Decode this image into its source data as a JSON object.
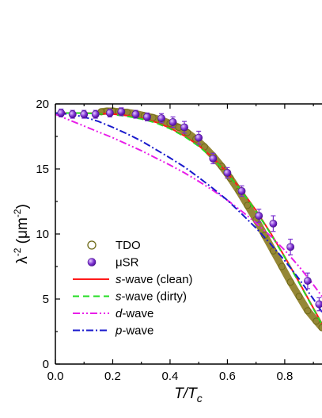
{
  "chart_data": {
    "type": "line",
    "xlabel": {
      "main": "T/T",
      "sub": "c"
    },
    "ylabel": {
      "main": "λ",
      "sup": "-2",
      "unit": " (μm",
      "unit_sup": "-2",
      "close": ")"
    },
    "xlim": [
      0.0,
      0.93
    ],
    "ylim": [
      0,
      20
    ],
    "xticks": [
      0.0,
      0.2,
      0.4,
      0.6,
      0.8
    ],
    "xtick_labels": [
      "0.0",
      "0.2",
      "0.4",
      "0.6",
      "0.8"
    ],
    "yticks": [
      0,
      5,
      10,
      15,
      20
    ],
    "ytick_labels": [
      "0",
      "5",
      "10",
      "15",
      "20"
    ],
    "grid": false,
    "legend_placement": "bottom-left",
    "series": [
      {
        "name": "TDO",
        "kind": "markers-open",
        "color": "#8a8a2a",
        "fill": "#8a7a20",
        "x": [
          0.16,
          0.18,
          0.2,
          0.22,
          0.25,
          0.28,
          0.31,
          0.34,
          0.37,
          0.4,
          0.43,
          0.46,
          0.49,
          0.52,
          0.55,
          0.58,
          0.61,
          0.64,
          0.67,
          0.7,
          0.73,
          0.76,
          0.79,
          0.82,
          0.85,
          0.88,
          0.91,
          0.93
        ],
        "y": [
          19.4,
          19.45,
          19.45,
          19.4,
          19.35,
          19.25,
          19.1,
          18.95,
          18.75,
          18.5,
          18.2,
          17.8,
          17.3,
          16.7,
          16.0,
          15.2,
          14.3,
          13.3,
          12.2,
          11.1,
          9.9,
          8.7,
          7.5,
          6.3,
          5.2,
          4.1,
          3.3,
          2.8
        ]
      },
      {
        "name": "μSR",
        "kind": "markers-filled",
        "color": "#7a2fd0",
        "x": [
          0.02,
          0.06,
          0.1,
          0.14,
          0.19,
          0.23,
          0.28,
          0.32,
          0.37,
          0.41,
          0.45,
          0.5,
          0.55,
          0.6,
          0.65,
          0.71,
          0.76,
          0.82,
          0.88,
          0.92
        ],
        "y": [
          19.3,
          19.2,
          19.2,
          19.2,
          19.3,
          19.4,
          19.2,
          19.0,
          18.9,
          18.6,
          18.2,
          17.4,
          15.8,
          14.7,
          13.3,
          11.4,
          10.8,
          9.0,
          6.4,
          4.6
        ],
        "err": [
          0.3,
          0.3,
          0.3,
          0.3,
          0.3,
          0.3,
          0.3,
          0.3,
          0.35,
          0.4,
          0.45,
          0.5,
          0.4,
          0.4,
          0.4,
          0.5,
          0.6,
          0.6,
          0.6,
          0.5
        ]
      },
      {
        "name": "s-wave (clean)",
        "name_italic": "s",
        "name_rest": "-wave (clean)",
        "kind": "line",
        "dash": "",
        "color": "#ff1a1a",
        "x": [
          0.0,
          0.05,
          0.1,
          0.15,
          0.2,
          0.25,
          0.3,
          0.35,
          0.4,
          0.45,
          0.5,
          0.55,
          0.6,
          0.65,
          0.7,
          0.75,
          0.8,
          0.85,
          0.9,
          0.93
        ],
        "y": [
          19.3,
          19.3,
          19.3,
          19.28,
          19.22,
          19.1,
          18.9,
          18.6,
          18.15,
          17.55,
          16.8,
          15.85,
          14.7,
          13.35,
          11.8,
          10.1,
          8.25,
          6.3,
          4.3,
          3.1
        ]
      },
      {
        "name": "s-wave (dirty)",
        "name_italic": "s",
        "name_rest": "-wave (dirty)",
        "kind": "line",
        "dash": "8,5",
        "color": "#22dd22",
        "x": [
          0.0,
          0.05,
          0.1,
          0.15,
          0.2,
          0.25,
          0.3,
          0.35,
          0.4,
          0.45,
          0.5,
          0.55,
          0.6,
          0.65,
          0.7,
          0.75,
          0.8,
          0.85,
          0.9,
          0.93
        ],
        "y": [
          19.3,
          19.3,
          19.29,
          19.25,
          19.18,
          19.05,
          18.85,
          18.55,
          18.1,
          17.5,
          16.75,
          15.8,
          14.65,
          13.3,
          11.75,
          10.05,
          8.2,
          6.25,
          4.25,
          3.05
        ]
      },
      {
        "name": "d-wave",
        "name_italic": "d",
        "name_rest": "-wave",
        "kind": "line",
        "dash": "9,3,2,3,2,3",
        "color": "#e81ee8",
        "x": [
          0.0,
          0.05,
          0.1,
          0.15,
          0.2,
          0.25,
          0.3,
          0.35,
          0.4,
          0.45,
          0.5,
          0.55,
          0.6,
          0.65,
          0.7,
          0.75,
          0.8,
          0.85,
          0.9,
          0.93
        ],
        "y": [
          19.2,
          18.75,
          18.3,
          17.85,
          17.4,
          16.9,
          16.4,
          15.85,
          15.3,
          14.7,
          14.05,
          13.35,
          12.6,
          11.75,
          10.85,
          9.85,
          8.75,
          7.5,
          6.1,
          5.2
        ]
      },
      {
        "name": "p-wave",
        "name_italic": "p",
        "name_rest": "-wave",
        "kind": "line",
        "dash": "9,3,2,3",
        "color": "#1a1acc",
        "x": [
          0.0,
          0.05,
          0.1,
          0.15,
          0.2,
          0.25,
          0.3,
          0.35,
          0.4,
          0.45,
          0.5,
          0.55,
          0.6,
          0.65,
          0.7,
          0.75,
          0.8,
          0.85,
          0.9,
          0.93
        ],
        "y": [
          19.3,
          19.2,
          19.0,
          18.65,
          18.2,
          17.7,
          17.15,
          16.5,
          15.85,
          15.15,
          14.35,
          13.5,
          12.6,
          11.55,
          10.45,
          9.25,
          7.95,
          6.55,
          5.0,
          4.0
        ]
      }
    ]
  }
}
